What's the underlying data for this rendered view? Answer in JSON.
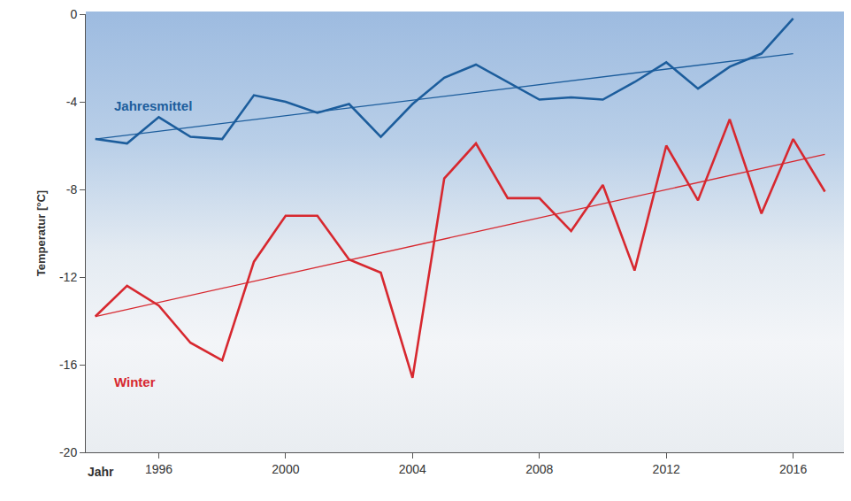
{
  "chart_data": {
    "type": "line",
    "y_label": "Temperatur [°C]",
    "x_label": "Jahr",
    "x": [
      1994,
      1995,
      1996,
      1997,
      1998,
      1999,
      2000,
      2001,
      2002,
      2003,
      2004,
      2005,
      2006,
      2007,
      2008,
      2009,
      2010,
      2011,
      2012,
      2013,
      2014,
      2015,
      2016,
      2017
    ],
    "series": [
      {
        "name": "Jahresmittel",
        "color": "#1c5d9c",
        "values": [
          -5.7,
          -5.9,
          -4.7,
          -5.6,
          -5.7,
          -3.7,
          -4.0,
          -4.5,
          -4.1,
          -5.6,
          -4.1,
          -2.9,
          -2.3,
          -3.1,
          -3.9,
          -3.8,
          -3.9,
          -3.1,
          -2.2,
          -3.4,
          -2.4,
          -1.8,
          -0.2,
          null
        ],
        "trend": {
          "x": [
            1994,
            2016
          ],
          "values": [
            -5.7,
            -1.8
          ]
        }
      },
      {
        "name": "Winter",
        "color": "#d7282f",
        "values": [
          -13.8,
          -12.4,
          -13.3,
          -15.0,
          -15.8,
          -11.3,
          -9.2,
          -9.2,
          -11.2,
          -11.8,
          -16.6,
          -7.5,
          -5.9,
          -8.4,
          -8.4,
          -9.9,
          -7.8,
          -11.7,
          -6.0,
          -8.5,
          -4.8,
          -9.1,
          -5.7,
          -8.1
        ],
        "trend": {
          "x": [
            1994,
            2017
          ],
          "values": [
            -13.8,
            -6.4
          ]
        }
      }
    ],
    "xlim": [
      1993.7,
      2017.6
    ],
    "xticks": [
      1996,
      2000,
      2004,
      2008,
      2012,
      2016
    ],
    "ylim": [
      -20,
      0
    ],
    "yticks": [
      0,
      -4,
      -8,
      -12,
      -16,
      -20
    ],
    "grid": false
  }
}
